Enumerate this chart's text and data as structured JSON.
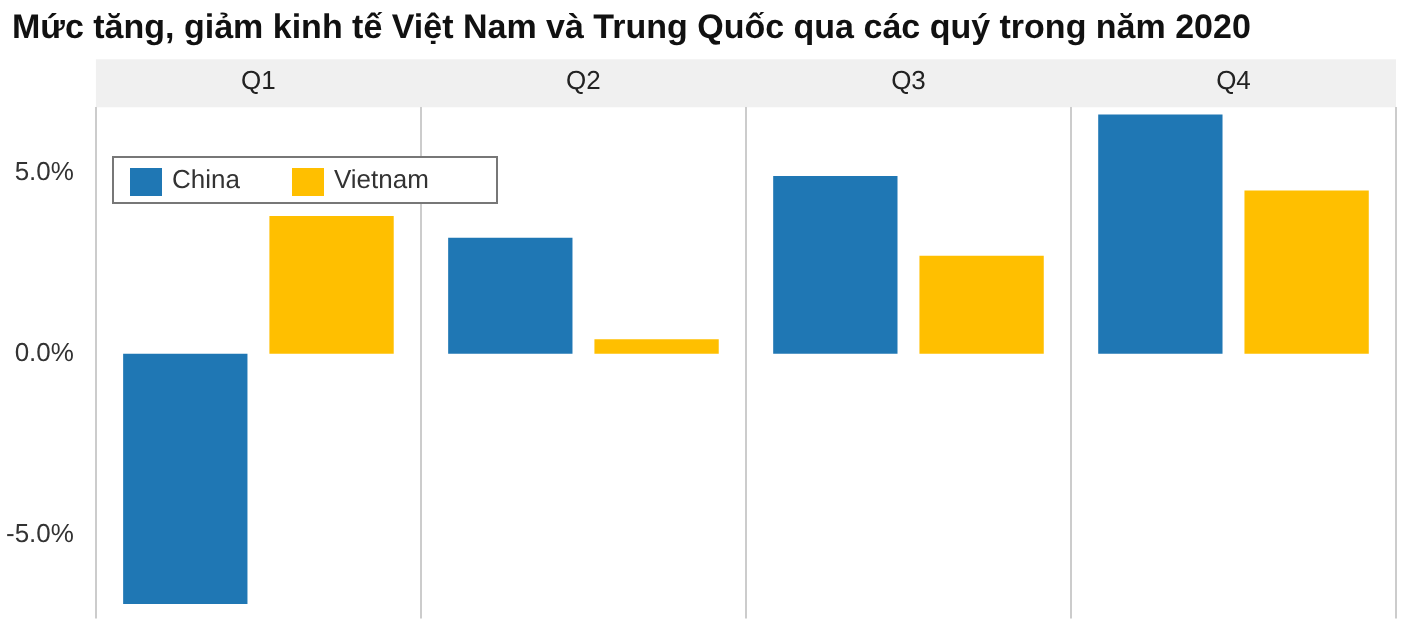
{
  "chart_data": {
    "type": "bar",
    "title": "Mức tăng, giảm kinh tế Việt Nam và Trung Quốc qua các quý trong năm 2020",
    "categories": [
      "Q1",
      "Q2",
      "Q3",
      "Q4"
    ],
    "series": [
      {
        "name": "China",
        "color": "#1f77b4",
        "values": [
          -6.9,
          3.2,
          4.9,
          6.6
        ]
      },
      {
        "name": "Vietnam",
        "color": "#ffbf00",
        "values": [
          3.8,
          0.4,
          2.7,
          4.5
        ]
      }
    ],
    "ylim": [
      -7.3,
      6.8
    ],
    "yticks": [
      {
        "value": -5,
        "label": "-5.0%"
      },
      {
        "value": 0,
        "label": "0.0%"
      },
      {
        "value": 5,
        "label": "5.0%"
      }
    ],
    "grid": "x",
    "legend": "top left"
  }
}
